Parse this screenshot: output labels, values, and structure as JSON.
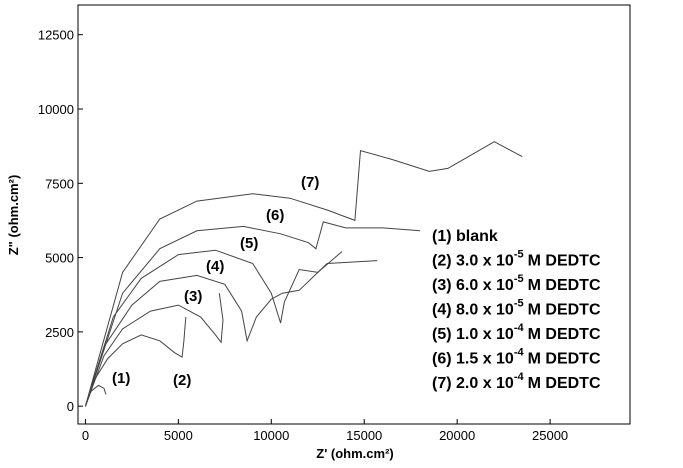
{
  "chart_data": {
    "type": "line",
    "x_label": "Z' (ohm.cm²)",
    "y_label": "Z\" (ohm.cm²)",
    "xlim": [
      -400,
      29300
    ],
    "ylim": [
      -600,
      13500
    ],
    "xticks": [
      0,
      5000,
      10000,
      15000,
      20000,
      25000
    ],
    "yticks": [
      0,
      2500,
      5000,
      7500,
      10000,
      12500
    ],
    "series": [
      {
        "name": [
          "(1) blank"
        ],
        "label": "(1)",
        "color": "#444",
        "x": [
          0,
          300,
          700,
          1000,
          1100
        ],
        "values": [
          0,
          500,
          700,
          600,
          400
        ]
      },
      {
        "name": [
          "(2) 3.0 x 10",
          "-5",
          "M DEDTC"
        ],
        "label": "(2)",
        "color": "#444",
        "x": [
          0,
          500,
          1200,
          2000,
          3000,
          4000,
          4800,
          5200,
          5300,
          5400
        ],
        "values": [
          0,
          900,
          1600,
          2100,
          2400,
          2200,
          1800,
          1650,
          2200,
          3000
        ]
      },
      {
        "name": [
          "(3) 6.0 x 10",
          "-5",
          "M DEDTC"
        ],
        "label": "(3)",
        "color": "#444",
        "x": [
          0,
          1000,
          2000,
          3500,
          5000,
          6200,
          7000,
          7300,
          7400,
          7200
        ],
        "values": [
          0,
          1700,
          2600,
          3200,
          3400,
          3000,
          2400,
          2150,
          2900,
          3800
        ]
      },
      {
        "name": [
          "(4) 8.0 x 10",
          "-5",
          "M DEDTC"
        ],
        "label": "(4)",
        "color": "#444",
        "x": [
          0,
          1000,
          2500,
          4000,
          6000,
          7500,
          8400,
          8700,
          9200,
          10000,
          10600,
          11500,
          13000,
          15700
        ],
        "values": [
          0,
          2000,
          3400,
          4200,
          4400,
          4100,
          3200,
          2200,
          3000,
          3600,
          3800,
          3900,
          4800,
          4900
        ]
      },
      {
        "name": [
          "(5) 1.0 x 10",
          "-4",
          "M DEDTC"
        ],
        "label": "(5)",
        "color": "#444",
        "x": [
          0,
          1500,
          3000,
          5000,
          7000,
          9000,
          10000,
          10500,
          10700,
          11500,
          12500,
          13800
        ],
        "values": [
          0,
          3000,
          4300,
          5100,
          5250,
          4800,
          3800,
          2800,
          3500,
          4600,
          4500,
          5200
        ]
      },
      {
        "name": [
          "(6) 1.5 x 10",
          "-4",
          "M DEDTC"
        ],
        "label": "(6)",
        "color": "#444",
        "x": [
          0,
          2000,
          4000,
          6000,
          8500,
          10500,
          12000,
          12400,
          12800,
          14000,
          16000,
          18000
        ],
        "values": [
          0,
          3800,
          5300,
          5900,
          6050,
          5800,
          5500,
          5300,
          6200,
          6000,
          6000,
          5900
        ]
      },
      {
        "name": [
          "(7) 2.0 x 10",
          "-4",
          "M DEDTC"
        ],
        "label": "(7)",
        "color": "#444",
        "x": [
          0,
          2000,
          4000,
          6000,
          9000,
          11000,
          13000,
          14500,
          14800,
          16500,
          18500,
          19500,
          22000,
          23500
        ],
        "values": [
          0,
          4500,
          6300,
          6900,
          7150,
          7000,
          6600,
          6250,
          8600,
          8300,
          7900,
          8000,
          8900,
          8400
        ]
      }
    ]
  }
}
